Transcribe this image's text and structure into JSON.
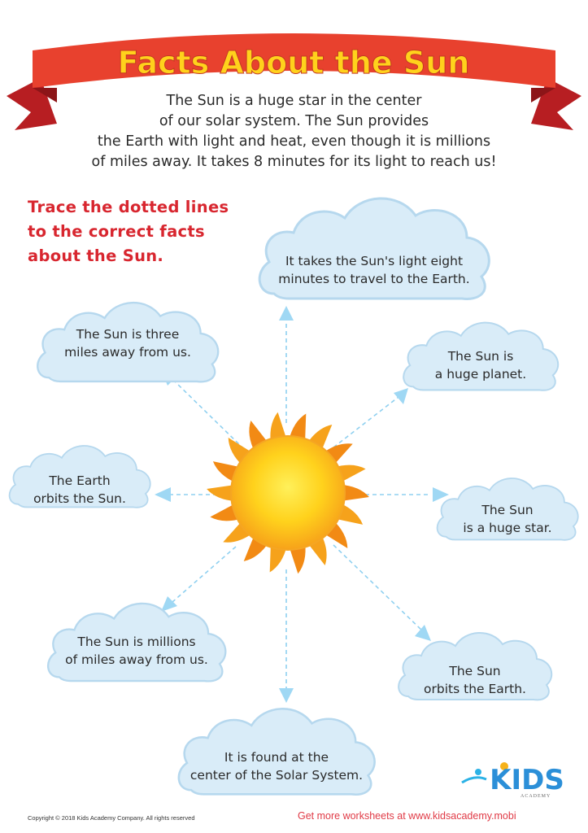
{
  "title": "Facts About the Sun",
  "intro_lines": [
    "The Sun is a huge star in the center",
    "of our solar system. The Sun provides",
    "the Earth with light and heat, even though it is millions",
    "of miles away. It takes 8 minutes for its light to reach us!"
  ],
  "instruction_lines": [
    "Trace the dotted lines",
    "to the correct facts",
    "about the Sun."
  ],
  "clouds": [
    {
      "id": "top",
      "lines": [
        "It takes the Sun's light eight",
        "minutes to travel to the Earth."
      ]
    },
    {
      "id": "upper-left",
      "lines": [
        "The Sun is three",
        "miles away from us."
      ]
    },
    {
      "id": "upper-right",
      "lines": [
        "The Sun is",
        "a huge planet."
      ]
    },
    {
      "id": "left",
      "lines": [
        "The Earth",
        "orbits the Sun."
      ]
    },
    {
      "id": "right",
      "lines": [
        "The Sun",
        "is a huge star."
      ]
    },
    {
      "id": "lower-left",
      "lines": [
        "The Sun is millions",
        "of miles away from us."
      ]
    },
    {
      "id": "lower-right",
      "lines": [
        "The Sun",
        "orbits the Earth."
      ]
    },
    {
      "id": "bottom",
      "lines": [
        "It is found at the",
        "center of the Solar System."
      ]
    }
  ],
  "logo": {
    "text": "KIDS",
    "subtext": "ACADEMY"
  },
  "footer": {
    "copyright": "Copyright © 2018 Kids Academy Company. All rights reserved",
    "link": "Get more worksheets at www.kidsacademy.mobi"
  },
  "colors": {
    "ribbon": "#e8412e",
    "ribbon_dark": "#b71e22",
    "title_text": "#ffd21c",
    "instruction": "#d8262f",
    "cloud_fill": "#d9ecf8",
    "cloud_stroke": "#b6d8ee",
    "dotted_line": "#8fd0f0",
    "sun_core": "#ffc515",
    "sun_rays": "#f79a16"
  },
  "icons": [
    "sun-icon",
    "arrow-icon",
    "cloud-icon",
    "ribbon-banner"
  ]
}
